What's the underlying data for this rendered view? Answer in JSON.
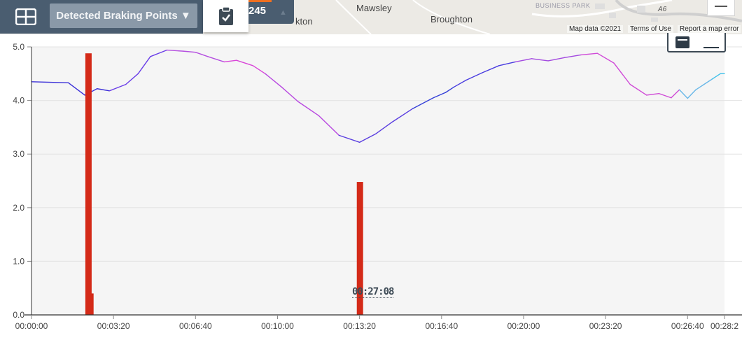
{
  "map": {
    "places": [
      "Mawsley",
      "Broughton",
      "kton"
    ],
    "business_park": "BUSINESS PARK",
    "road": "A6",
    "attribution": [
      "Map data ©2021",
      "Terms of Use",
      "Report a map error"
    ]
  },
  "toolbar": {
    "grid_icon": "grid-icon",
    "detected_label": "Detected Braking Points ▼",
    "clipboard_icon": "clipboard-check-icon",
    "counter_value": "245",
    "counter_up_icon": "▲"
  },
  "colors": {
    "toolbar_bg": "#4a5d70",
    "button_bg": "#8a99a8",
    "bar": "#d42a18",
    "plot_bg": "#f5f5f5",
    "accent": "#f07020"
  },
  "chart_data": {
    "type": "bar",
    "title": "",
    "xlabel": "",
    "ylabel": "",
    "ylim": [
      0,
      5
    ],
    "xlim_seconds": [
      0,
      1690
    ],
    "y_ticks": [
      "0.0",
      "1.0",
      "2.0",
      "3.0",
      "4.0",
      "5.0"
    ],
    "x_ticks": [
      "00:00:00",
      "00:03:20",
      "00:06:40",
      "00:10:00",
      "00:13:20",
      "00:16:40",
      "00:20:00",
      "00:23:20",
      "00:26:40",
      "00:28:2"
    ],
    "grid": true,
    "bars": [
      {
        "t": "00:02:19",
        "value": 4.88
      },
      {
        "t": "00:02:28",
        "value": 0.4
      },
      {
        "t": "00:13:21",
        "value": 2.48
      }
    ],
    "speed_line": {
      "t_seconds": [
        0,
        90,
        130,
        160,
        190,
        230,
        260,
        290,
        330,
        370,
        400,
        430,
        470,
        500,
        540,
        570,
        610,
        650,
        700,
        750,
        800,
        840,
        880,
        930,
        980,
        1010,
        1030,
        1060,
        1100,
        1140,
        1180,
        1220,
        1260,
        1300,
        1340,
        1380,
        1420,
        1460,
        1500,
        1530,
        1560,
        1580,
        1600,
        1620,
        1640,
        1660,
        1680,
        1690
      ],
      "values": [
        4.35,
        4.33,
        4.1,
        4.22,
        4.18,
        4.3,
        4.5,
        4.82,
        4.94,
        4.92,
        4.9,
        4.82,
        4.72,
        4.75,
        4.65,
        4.5,
        4.25,
        3.98,
        3.72,
        3.35,
        3.22,
        3.38,
        3.6,
        3.85,
        4.05,
        4.15,
        4.25,
        4.38,
        4.52,
        4.65,
        4.72,
        4.78,
        4.74,
        4.8,
        4.85,
        4.88,
        4.7,
        4.3,
        4.1,
        4.13,
        4.05,
        4.2,
        4.04,
        4.2,
        4.3,
        4.4,
        4.5,
        4.5
      ]
    },
    "marker_label": "00:27:08"
  }
}
